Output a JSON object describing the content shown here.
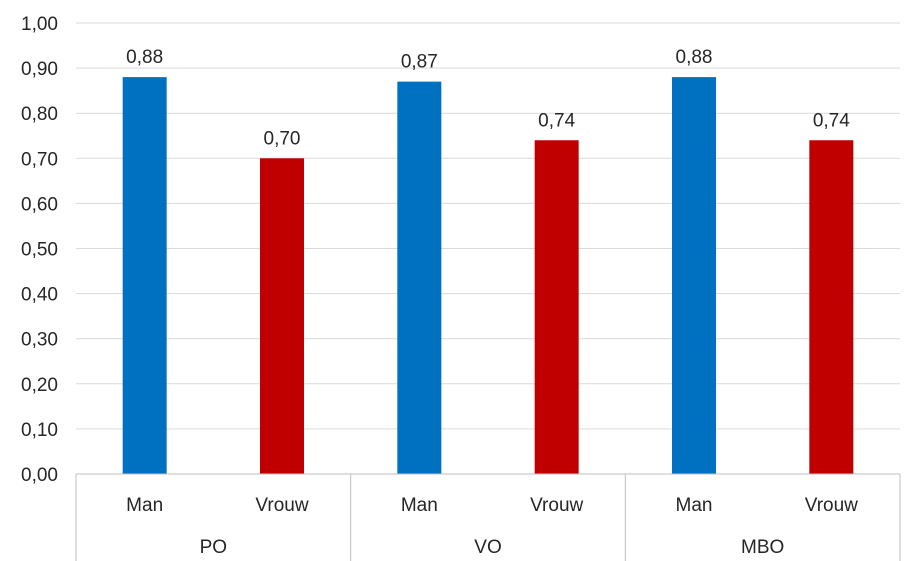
{
  "chart_data": {
    "type": "bar",
    "groups": [
      {
        "label": "PO",
        "categories": [
          "Man",
          "Vrouw"
        ],
        "values": [
          0.88,
          0.7
        ],
        "labels": [
          "0,88",
          "0,70"
        ]
      },
      {
        "label": "VO",
        "categories": [
          "Man",
          "Vrouw"
        ],
        "values": [
          0.87,
          0.74
        ],
        "labels": [
          "0,87",
          "0,74"
        ]
      },
      {
        "label": "MBO",
        "categories": [
          "Man",
          "Vrouw"
        ],
        "values": [
          0.88,
          0.74
        ],
        "labels": [
          "0,88",
          "0,74"
        ]
      }
    ],
    "y_ticks": [
      "0,00",
      "0,10",
      "0,20",
      "0,30",
      "0,40",
      "0,50",
      "0,60",
      "0,70",
      "0,80",
      "0,90",
      "1,00"
    ],
    "ylim": [
      0,
      1
    ],
    "grid": true,
    "colors": {
      "Man": "#0070c0",
      "Vrouw": "#c00000"
    }
  }
}
